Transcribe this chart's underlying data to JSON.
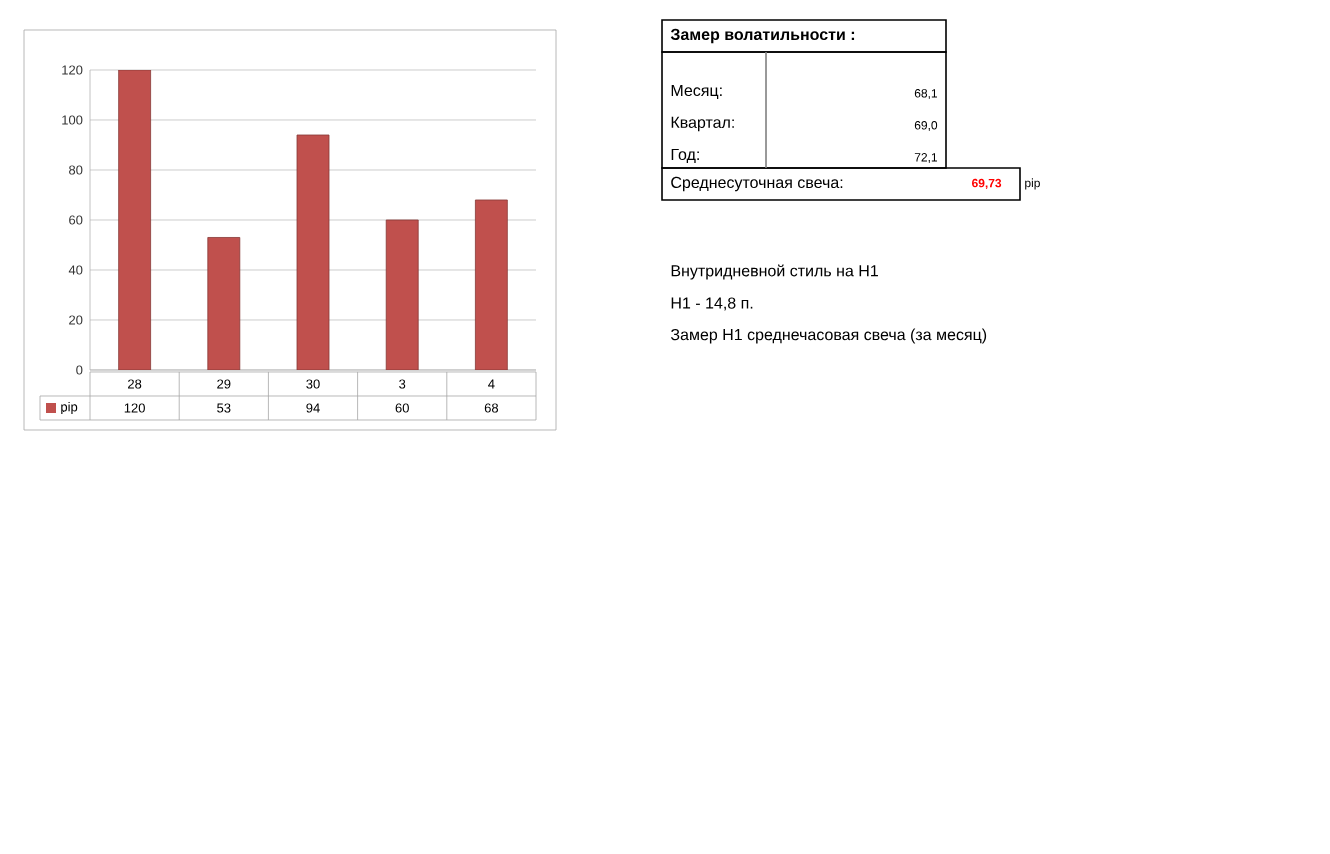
{
  "chart_data": {
    "type": "bar",
    "categories": [
      "28",
      "29",
      "30",
      "3",
      "4"
    ],
    "series": [
      {
        "name": "pip",
        "color": "#c0504d",
        "values": [
          120,
          53,
          94,
          60,
          68
        ]
      }
    ],
    "ylim": [
      0,
      120
    ],
    "yticks": [
      0,
      20,
      40,
      60,
      80,
      100,
      120
    ],
    "grid": "y",
    "legend": "bottom left",
    "data_labels": true,
    "annotations": [
      "Замер  волатильности  :",
      "Месяц:",
      "68,1",
      "Квартал:",
      "69,0",
      "Год:",
      "72,1",
      "Среднесуточная свеча:",
      "69,73",
      "pip",
      "Внутридневной стиль на H1",
      "H1 - 14,8 п.",
      "Замер H1 среднечасовая свеча (за месяц)"
    ]
  }
}
